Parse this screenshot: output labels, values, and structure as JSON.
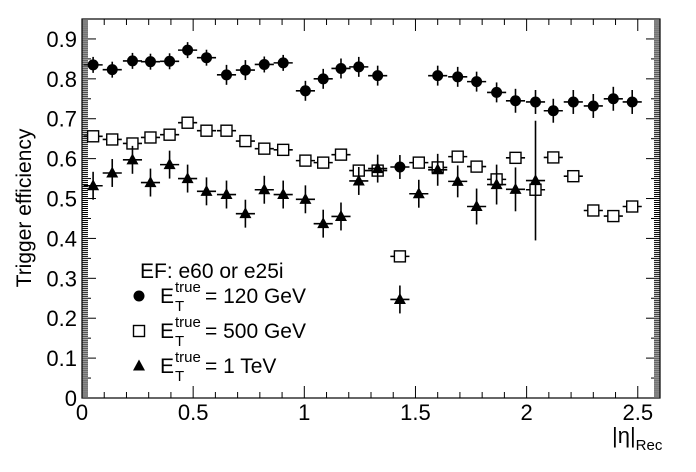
{
  "chart_data": {
    "type": "scatter",
    "title": "",
    "xlabel": "|η|",
    "xlabel_sub": "Rec",
    "ylabel": "Trigger efficiency",
    "xlim": [
      0,
      2.6
    ],
    "ylim": [
      0,
      0.95
    ],
    "x_ticks": [
      0,
      0.5,
      1,
      1.5,
      2,
      2.5
    ],
    "x_tick_labels": [
      "0",
      "0.5",
      "1",
      "1.5",
      "2",
      "2.5"
    ],
    "y_ticks": [
      0,
      0.1,
      0.2,
      0.3,
      0.4,
      0.5,
      0.6,
      0.7,
      0.8,
      0.9
    ],
    "y_tick_labels": [
      "0",
      "0.1",
      "0.2",
      "0.3",
      "0.4",
      "0.5",
      "0.6",
      "0.7",
      "0.8",
      "0.9"
    ],
    "grid": false,
    "legend_placement": "bottom-left",
    "legend_title": "EF: e60 or e25i",
    "series": [
      {
        "name": "E_T^true = 120 GeV",
        "legend_label": {
          "base": "E",
          "sub": "T",
          "sup": "true",
          "rest": " = 120 GeV"
        },
        "marker": "filled-circle",
        "x": [
          0.05,
          0.136,
          0.227,
          0.308,
          0.394,
          0.475,
          0.56,
          0.65,
          0.735,
          0.82,
          0.905,
          1.005,
          1.085,
          1.165,
          1.245,
          1.33,
          1.43,
          1.6,
          1.69,
          1.775,
          1.865,
          1.95,
          2.04,
          2.12,
          2.21,
          2.3,
          2.39,
          2.475
        ],
        "y": [
          0.835,
          0.823,
          0.845,
          0.843,
          0.844,
          0.872,
          0.853,
          0.81,
          0.822,
          0.836,
          0.84,
          0.77,
          0.8,
          0.826,
          0.83,
          0.808,
          0.579,
          0.808,
          0.805,
          0.793,
          0.766,
          0.745,
          0.742,
          0.72,
          0.742,
          0.732,
          0.75,
          0.742
        ],
        "yerr": [
          0.02,
          0.02,
          0.02,
          0.02,
          0.02,
          0.02,
          0.02,
          0.025,
          0.025,
          0.02,
          0.02,
          0.025,
          0.025,
          0.025,
          0.025,
          0.025,
          0.03,
          0.025,
          0.025,
          0.025,
          0.025,
          0.03,
          0.03,
          0.03,
          0.03,
          0.03,
          0.03,
          0.03
        ]
      },
      {
        "name": "E_T^true = 500 GeV",
        "legend_label": {
          "base": "E",
          "sub": "T",
          "sup": "true",
          "rest": " = 500 GeV"
        },
        "marker": "open-square",
        "x": [
          0.05,
          0.136,
          0.227,
          0.308,
          0.394,
          0.475,
          0.56,
          0.65,
          0.735,
          0.82,
          0.905,
          1.005,
          1.085,
          1.165,
          1.245,
          1.33,
          1.43,
          1.515,
          1.6,
          1.69,
          1.775,
          1.865,
          1.95,
          2.04,
          2.12,
          2.21,
          2.3,
          2.39,
          2.475
        ],
        "y": [
          0.656,
          0.648,
          0.638,
          0.653,
          0.66,
          0.69,
          0.67,
          0.67,
          0.644,
          0.625,
          0.622,
          0.595,
          0.59,
          0.61,
          0.57,
          0.57,
          0.355,
          0.59,
          0.578,
          0.605,
          0.58,
          0.548,
          0.602,
          0.522,
          0.603,
          0.556,
          0.47,
          0.456,
          0.48
        ]
      },
      {
        "name": "E_T^true = 1 TeV",
        "legend_label": {
          "base": "E",
          "sub": "T",
          "sup": "true",
          "rest": " = 1 TeV"
        },
        "marker": "filled-triangle",
        "x": [
          0.05,
          0.136,
          0.227,
          0.308,
          0.394,
          0.475,
          0.56,
          0.65,
          0.735,
          0.82,
          0.905,
          1.005,
          1.085,
          1.165,
          1.245,
          1.33,
          1.43,
          1.515,
          1.6,
          1.69,
          1.775,
          1.865,
          1.95,
          2.04
        ],
        "y": [
          0.532,
          0.564,
          0.597,
          0.54,
          0.585,
          0.55,
          0.518,
          0.51,
          0.462,
          0.522,
          0.51,
          0.498,
          0.437,
          0.455,
          0.544,
          0.575,
          0.247,
          0.512,
          0.572,
          0.543,
          0.48,
          0.535,
          0.523,
          0.545
        ],
        "yerr": [
          0.035,
          0.035,
          0.035,
          0.035,
          0.035,
          0.035,
          0.035,
          0.035,
          0.035,
          0.035,
          0.035,
          0.035,
          0.035,
          0.035,
          0.035,
          0.035,
          0.035,
          0.035,
          0.04,
          0.04,
          0.045,
          0.05,
          0.055,
          0.15
        ]
      }
    ]
  }
}
